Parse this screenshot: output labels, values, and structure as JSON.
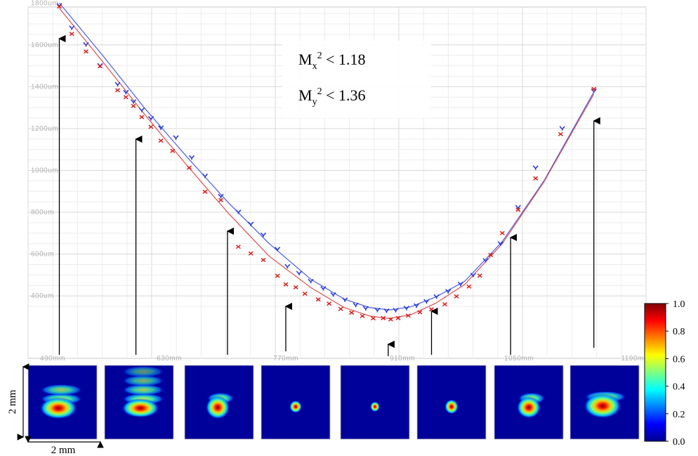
{
  "chart_data": {
    "type": "scatter",
    "title": "",
    "xlabel": "",
    "ylabel": "",
    "xlim": [
      490,
      1190
    ],
    "ylim": [
      300,
      1850
    ],
    "x_ticks": [
      "490mm",
      "630mm",
      "770mm",
      "910mm",
      "1050mm",
      "1190mm"
    ],
    "x_tick_values": [
      490,
      630,
      770,
      910,
      1050,
      1190
    ],
    "y_ticks": [
      "400um",
      "600um",
      "800um",
      "1000um",
      "1200um",
      "1400um",
      "1600um",
      "1800um"
    ],
    "y_tick_values": [
      400,
      600,
      800,
      1000,
      1200,
      1400,
      1600,
      1800
    ],
    "grid": true,
    "series": [
      {
        "color": "#2b3fd6",
        "marker": "chevron",
        "points": [
          [
            498,
            1790
          ],
          [
            513,
            1683
          ],
          [
            530,
            1603
          ],
          [
            547,
            1503
          ],
          [
            568,
            1413
          ],
          [
            578,
            1375
          ],
          [
            587,
            1330
          ],
          [
            597,
            1290
          ],
          [
            608,
            1250
          ],
          [
            620,
            1205
          ],
          [
            638,
            1158
          ],
          [
            657,
            1063
          ],
          [
            673,
            975
          ],
          [
            692,
            878
          ],
          [
            713,
            803
          ],
          [
            728,
            745
          ],
          [
            743,
            693
          ],
          [
            760,
            625
          ],
          [
            772,
            543
          ],
          [
            786,
            510
          ],
          [
            800,
            472
          ],
          [
            815,
            437
          ],
          [
            827,
            408
          ],
          [
            841,
            383
          ],
          [
            854,
            358
          ],
          [
            866,
            342
          ],
          [
            880,
            334
          ],
          [
            891,
            330
          ],
          [
            902,
            333
          ],
          [
            915,
            343
          ],
          [
            927,
            355
          ],
          [
            939,
            375
          ],
          [
            951,
            398
          ],
          [
            965,
            423
          ],
          [
            980,
            458
          ],
          [
            995,
            501
          ],
          [
            1010,
            571
          ],
          [
            1028,
            651
          ],
          [
            1049,
            825
          ],
          [
            1070,
            1014
          ],
          [
            1102,
            1202
          ],
          [
            1140,
            1382
          ]
        ]
      },
      {
        "color": "#d42020",
        "marker": "cross",
        "points": [
          [
            498,
            1783
          ],
          [
            513,
            1652
          ],
          [
            530,
            1568
          ],
          [
            547,
            1498
          ],
          [
            568,
            1383
          ],
          [
            578,
            1350
          ],
          [
            587,
            1308
          ],
          [
            597,
            1255
          ],
          [
            608,
            1208
          ],
          [
            620,
            1142
          ],
          [
            634,
            1093
          ],
          [
            654,
            1013
          ],
          [
            673,
            898
          ],
          [
            692,
            858
          ],
          [
            713,
            635
          ],
          [
            728,
            603
          ],
          [
            743,
            572
          ],
          [
            760,
            496
          ],
          [
            770,
            455
          ],
          [
            782,
            441
          ],
          [
            793,
            411
          ],
          [
            809,
            383
          ],
          [
            822,
            363
          ],
          [
            836,
            338
          ],
          [
            849,
            320
          ],
          [
            862,
            304
          ],
          [
            875,
            293
          ],
          [
            887,
            294
          ],
          [
            896,
            288
          ],
          [
            905,
            294
          ],
          [
            917,
            306
          ],
          [
            931,
            322
          ],
          [
            945,
            336
          ],
          [
            961,
            360
          ],
          [
            975,
            398
          ],
          [
            990,
            445
          ],
          [
            1003,
            497
          ],
          [
            1016,
            596
          ],
          [
            1030,
            700
          ],
          [
            1049,
            812
          ],
          [
            1070,
            962
          ],
          [
            1100,
            1173
          ],
          [
            1140,
            1389
          ]
        ]
      },
      {
        "color": "#4a5ee0",
        "marker": "line",
        "points": [
          [
            498,
            1800
          ],
          [
            550,
            1550
          ],
          [
            600,
            1300
          ],
          [
            650,
            1070
          ],
          [
            700,
            850
          ],
          [
            750,
            650
          ],
          [
            800,
            480
          ],
          [
            840,
            385
          ],
          [
            870,
            345
          ],
          [
            895,
            333
          ],
          [
            920,
            348
          ],
          [
            950,
            395
          ],
          [
            985,
            470
          ],
          [
            1030,
            660
          ],
          [
            1080,
            950
          ],
          [
            1140,
            1375
          ]
        ]
      },
      {
        "color": "#d85050",
        "marker": "line",
        "points": [
          [
            498,
            1775
          ],
          [
            550,
            1520
          ],
          [
            600,
            1270
          ],
          [
            650,
            1030
          ],
          [
            700,
            800
          ],
          [
            750,
            590
          ],
          [
            800,
            440
          ],
          [
            840,
            345
          ],
          [
            870,
            305
          ],
          [
            893,
            292
          ],
          [
            920,
            310
          ],
          [
            950,
            365
          ],
          [
            985,
            455
          ],
          [
            1030,
            650
          ],
          [
            1080,
            945
          ],
          [
            1140,
            1365
          ]
        ]
      }
    ],
    "annotations": [
      {
        "lines": [
          {
            "text": "M",
            "sub": "x",
            "sup": "2",
            "tail": " < 1.18"
          },
          {
            "text": "M",
            "sub": "y",
            "sup": "2",
            "tail": " < 1.36"
          }
        ]
      }
    ],
    "arrow_x_values": [
      498,
      590,
      700,
      770,
      893,
      945,
      1040,
      1140
    ],
    "beam_profiles": [
      {
        "spot_width": 0.55,
        "spot_height": 0.3,
        "spot_x": 0.44,
        "spot_y": 0.58,
        "fringes": 2
      },
      {
        "spot_width": 0.55,
        "spot_height": 0.26,
        "spot_x": 0.52,
        "spot_y": 0.58,
        "fringes": 4
      },
      {
        "spot_width": 0.35,
        "spot_height": 0.32,
        "spot_x": 0.48,
        "spot_y": 0.57,
        "fringes": 1
      },
      {
        "spot_width": 0.18,
        "spot_height": 0.17,
        "spot_x": 0.5,
        "spot_y": 0.56,
        "fringes": 0
      },
      {
        "spot_width": 0.14,
        "spot_height": 0.14,
        "spot_x": 0.5,
        "spot_y": 0.56,
        "fringes": 0
      },
      {
        "spot_width": 0.2,
        "spot_height": 0.2,
        "spot_x": 0.5,
        "spot_y": 0.56,
        "fringes": 0
      },
      {
        "spot_width": 0.35,
        "spot_height": 0.3,
        "spot_x": 0.5,
        "spot_y": 0.57,
        "fringes": 1
      },
      {
        "spot_width": 0.55,
        "spot_height": 0.34,
        "spot_x": 0.47,
        "spot_y": 0.55,
        "fringes": 1
      }
    ],
    "scale_labels": {
      "vertical": "2 mm",
      "horizontal": "2 mm"
    },
    "colorbar": {
      "min": 0.0,
      "max": 1.0,
      "ticks": [
        "0.0",
        "0.2",
        "0.4",
        "0.6",
        "0.8",
        "1.0"
      ],
      "colormap": "jet"
    }
  }
}
